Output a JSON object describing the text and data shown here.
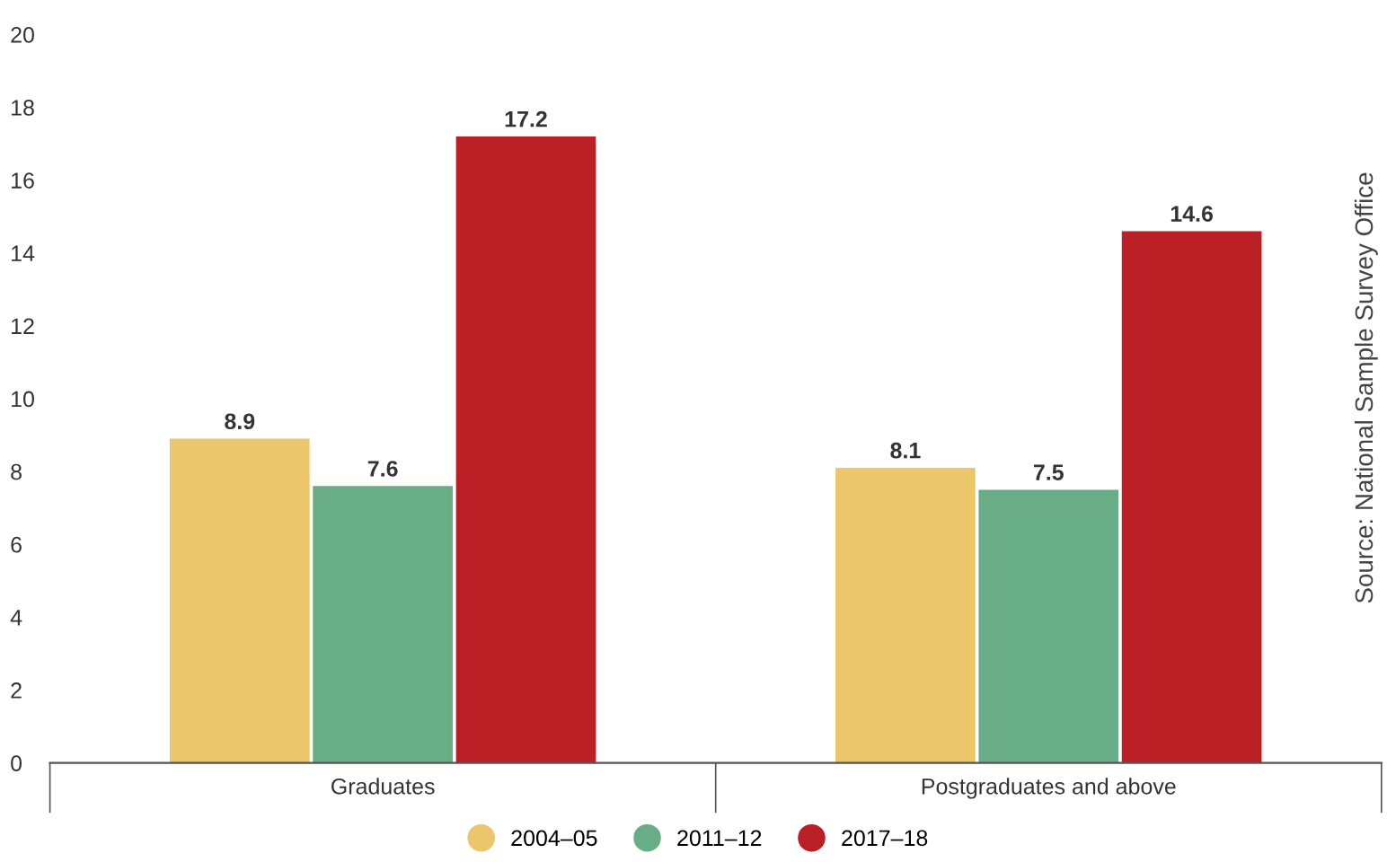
{
  "chart_data": {
    "type": "bar",
    "categories": [
      "Graduates",
      "Postgraduates and above"
    ],
    "series": [
      {
        "name": "2004–05",
        "color": "#ecc66a",
        "values": [
          8.9,
          8.1
        ]
      },
      {
        "name": "2011–12",
        "color": "#68ad86",
        "values": [
          7.6,
          7.5
        ]
      },
      {
        "name": "2017–18",
        "color": "#bb2026",
        "values": [
          17.2,
          14.6
        ]
      }
    ],
    "ylim": [
      0,
      20
    ],
    "yticks": [
      0,
      2,
      4,
      6,
      8,
      10,
      12,
      14,
      16,
      18,
      20
    ],
    "grid": false,
    "legend": "bottom",
    "data_labels": true,
    "annotations": [
      "Source: National Sample Survey Office"
    ]
  }
}
